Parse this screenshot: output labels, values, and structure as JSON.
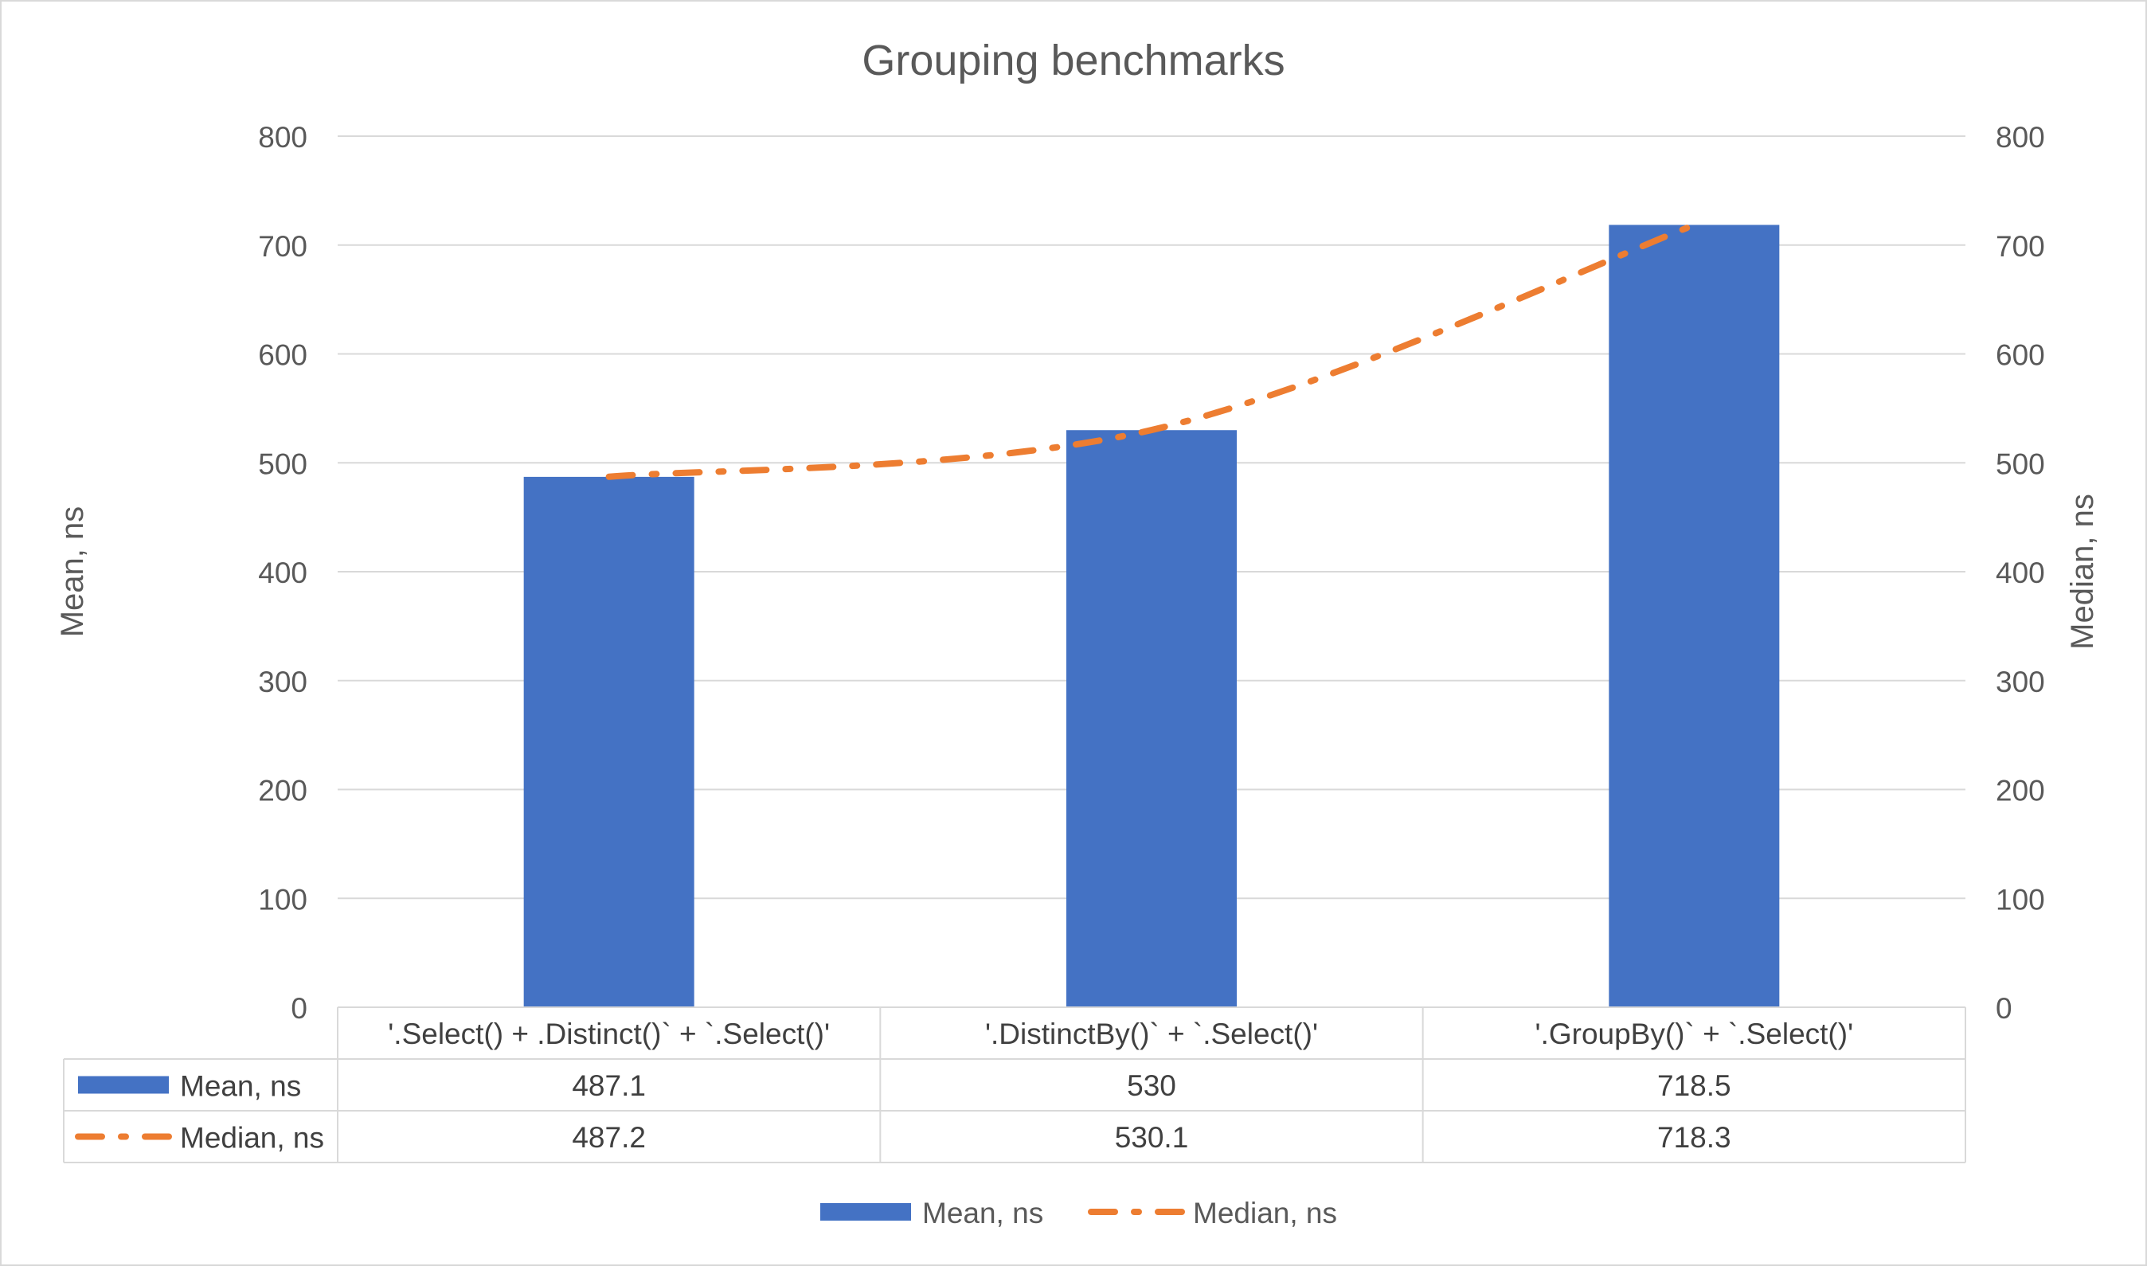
{
  "chart_data": {
    "type": "bar",
    "title": "Grouping benchmarks",
    "categories": [
      "'.Select() + .Distinct()` + `.Select()'",
      "'.DistinctBy()` + `.Select()'",
      "'.GroupBy()` + `.Select()'"
    ],
    "series": [
      {
        "name": "Mean, ns",
        "type": "bar",
        "axis": "left",
        "values": [
          487.1,
          530,
          718.5
        ],
        "labels": [
          "487.1",
          "530",
          "718.5"
        ],
        "color": "#4472C4"
      },
      {
        "name": "Median, ns",
        "type": "line",
        "style": "dash-dot",
        "axis": "right",
        "values": [
          487.2,
          530.1,
          718.3
        ],
        "labels": [
          "487.2",
          "530.1",
          "718.3"
        ],
        "color": "#ED7D31"
      }
    ],
    "ylabel": "Mean, ns",
    "y2label": "Median, ns",
    "ylim": [
      0,
      800
    ],
    "y2lim": [
      0,
      800
    ],
    "yticks": [
      0,
      100,
      200,
      300,
      400,
      500,
      600,
      700,
      800
    ],
    "grid": true,
    "legend": "bottom",
    "data_table": true
  }
}
